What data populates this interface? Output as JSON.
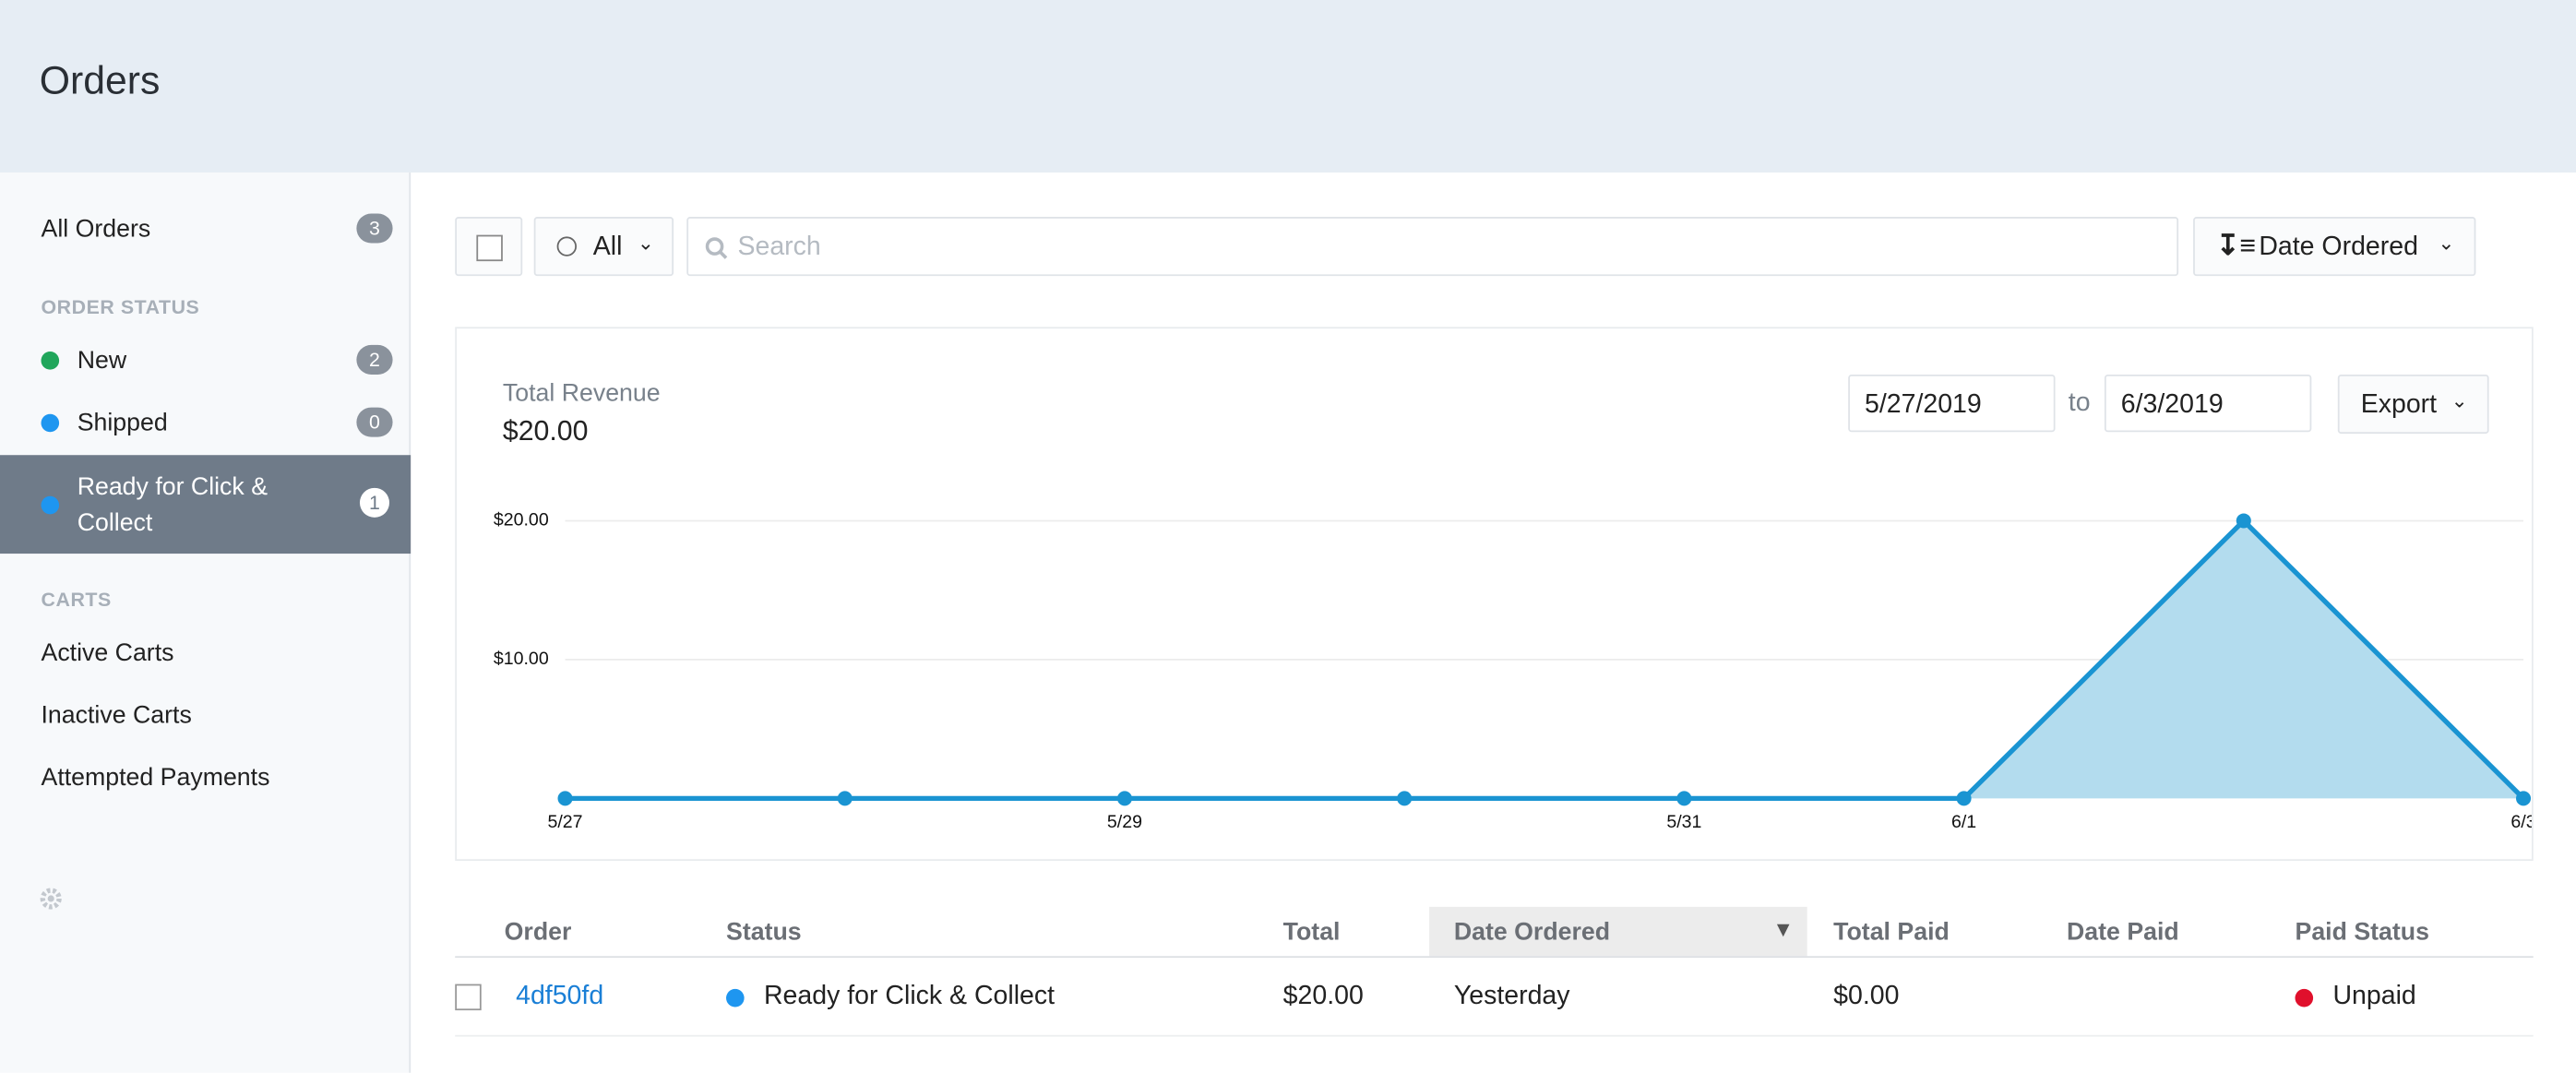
{
  "header": {
    "title": "Orders"
  },
  "sidebar": {
    "all_orders": {
      "label": "All Orders",
      "count": 3
    },
    "order_status_heading": "ORDER STATUS",
    "statuses": [
      {
        "label": "New",
        "count": 2,
        "color": "#21a65b"
      },
      {
        "label": "Shipped",
        "count": 0,
        "color": "#1e96f0"
      },
      {
        "label": "Ready for Click & Collect",
        "count": 1,
        "color": "#1e96f0"
      }
    ],
    "carts_heading": "CARTS",
    "carts": [
      "Active Carts",
      "Inactive Carts",
      "Attempted Payments"
    ]
  },
  "toolbar": {
    "filter": "All",
    "search_placeholder": "Search",
    "sort": "Date Ordered"
  },
  "date_range": {
    "from": "5/27/2019",
    "separator": "to",
    "to": "6/3/2019",
    "export": "Export"
  },
  "chart_data": {
    "type": "area",
    "title": "Total Revenue",
    "subtitle": "$20.00",
    "categories": [
      "5/27",
      null,
      "5/29",
      null,
      "5/31",
      "6/1",
      null,
      "6/3"
    ],
    "values": [
      0,
      0,
      0,
      0,
      0,
      0,
      20,
      0
    ],
    "color": "#1a94d2",
    "fill": "#b3dcee",
    "ylim": [
      0,
      20
    ],
    "yticks": [
      {
        "value": 10,
        "label": "$10.00"
      },
      {
        "value": 20,
        "label": "$20.00"
      }
    ],
    "grid": true
  },
  "table": {
    "headers": [
      "Order",
      "Status",
      "Total",
      "Date Ordered",
      "Total Paid",
      "Date Paid",
      "Paid Status"
    ],
    "rows": [
      {
        "order": "4df50fd",
        "status": "Ready for Click & Collect",
        "total": "$20.00",
        "date_ordered": "Yesterday",
        "total_paid": "$0.00",
        "date_paid": "",
        "paid_status": "Unpaid"
      }
    ]
  }
}
